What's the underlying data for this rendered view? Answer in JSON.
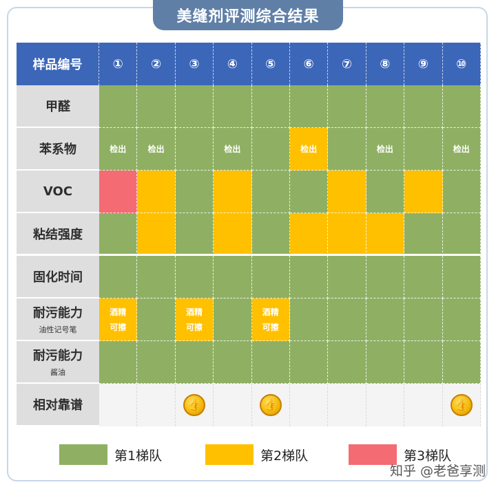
{
  "title": "美缝剂评测综合结果",
  "header": {
    "label": "样品编号",
    "samples": [
      "①",
      "②",
      "③",
      "④",
      "⑤",
      "⑥",
      "⑦",
      "⑧",
      "⑨",
      "⑩"
    ]
  },
  "rows": [
    {
      "label": "甲醛",
      "sub": "",
      "cells": [
        {
          "tier": 1,
          "text": ""
        },
        {
          "tier": 1,
          "text": ""
        },
        {
          "tier": 1,
          "text": ""
        },
        {
          "tier": 1,
          "text": ""
        },
        {
          "tier": 1,
          "text": ""
        },
        {
          "tier": 1,
          "text": ""
        },
        {
          "tier": 1,
          "text": ""
        },
        {
          "tier": 1,
          "text": ""
        },
        {
          "tier": 1,
          "text": ""
        },
        {
          "tier": 1,
          "text": ""
        }
      ]
    },
    {
      "label": "苯系物",
      "sub": "",
      "cells": [
        {
          "tier": 1,
          "text": "检出"
        },
        {
          "tier": 1,
          "text": "检出"
        },
        {
          "tier": 1,
          "text": ""
        },
        {
          "tier": 1,
          "text": "检出"
        },
        {
          "tier": 1,
          "text": ""
        },
        {
          "tier": 2,
          "text": "检出"
        },
        {
          "tier": 1,
          "text": ""
        },
        {
          "tier": 1,
          "text": "检出"
        },
        {
          "tier": 1,
          "text": ""
        },
        {
          "tier": 1,
          "text": "检出"
        }
      ]
    },
    {
      "label": "VOC",
      "sub": "",
      "cells": [
        {
          "tier": 3,
          "text": ""
        },
        {
          "tier": 2,
          "text": ""
        },
        {
          "tier": 1,
          "text": ""
        },
        {
          "tier": 2,
          "text": ""
        },
        {
          "tier": 1,
          "text": ""
        },
        {
          "tier": 1,
          "text": ""
        },
        {
          "tier": 2,
          "text": ""
        },
        {
          "tier": 1,
          "text": ""
        },
        {
          "tier": 2,
          "text": ""
        },
        {
          "tier": 1,
          "text": ""
        }
      ]
    },
    {
      "label": "粘结强度",
      "sub": "",
      "sep": true,
      "cells": [
        {
          "tier": 1,
          "text": ""
        },
        {
          "tier": 2,
          "text": ""
        },
        {
          "tier": 1,
          "text": ""
        },
        {
          "tier": 2,
          "text": ""
        },
        {
          "tier": 1,
          "text": ""
        },
        {
          "tier": 2,
          "text": ""
        },
        {
          "tier": 2,
          "text": ""
        },
        {
          "tier": 2,
          "text": ""
        },
        {
          "tier": 1,
          "text": ""
        },
        {
          "tier": 1,
          "text": ""
        }
      ]
    },
    {
      "label": "固化时间",
      "sub": "",
      "cells": [
        {
          "tier": 1,
          "text": ""
        },
        {
          "tier": 1,
          "text": ""
        },
        {
          "tier": 1,
          "text": ""
        },
        {
          "tier": 1,
          "text": ""
        },
        {
          "tier": 1,
          "text": ""
        },
        {
          "tier": 1,
          "text": ""
        },
        {
          "tier": 1,
          "text": ""
        },
        {
          "tier": 1,
          "text": ""
        },
        {
          "tier": 1,
          "text": ""
        },
        {
          "tier": 1,
          "text": ""
        }
      ]
    },
    {
      "label": "耐污能力",
      "sub": "油性记号笔",
      "cells": [
        {
          "tier": 2,
          "text": "酒精",
          "text2": "可擦"
        },
        {
          "tier": 1,
          "text": ""
        },
        {
          "tier": 2,
          "text": "酒精",
          "text2": "可擦"
        },
        {
          "tier": 1,
          "text": ""
        },
        {
          "tier": 2,
          "text": "酒精",
          "text2": "可擦"
        },
        {
          "tier": 1,
          "text": ""
        },
        {
          "tier": 1,
          "text": ""
        },
        {
          "tier": 1,
          "text": ""
        },
        {
          "tier": 1,
          "text": ""
        },
        {
          "tier": 1,
          "text": ""
        }
      ]
    },
    {
      "label": "耐污能力",
      "sub": "酱油",
      "cells": [
        {
          "tier": 1,
          "text": ""
        },
        {
          "tier": 1,
          "text": ""
        },
        {
          "tier": 1,
          "text": ""
        },
        {
          "tier": 1,
          "text": ""
        },
        {
          "tier": 1,
          "text": ""
        },
        {
          "tier": 1,
          "text": ""
        },
        {
          "tier": 1,
          "text": ""
        },
        {
          "tier": 1,
          "text": ""
        },
        {
          "tier": 1,
          "text": ""
        },
        {
          "tier": 1,
          "text": ""
        }
      ]
    },
    {
      "label": "相对靠谱",
      "sub": "",
      "cells": [
        {
          "tier": 0,
          "text": ""
        },
        {
          "tier": 0,
          "text": ""
        },
        {
          "tier": 0,
          "text": "",
          "icon": "thumbs-up-medal-icon"
        },
        {
          "tier": 0,
          "text": ""
        },
        {
          "tier": 0,
          "text": "",
          "icon": "thumbs-up-medal-icon"
        },
        {
          "tier": 0,
          "text": ""
        },
        {
          "tier": 0,
          "text": ""
        },
        {
          "tier": 0,
          "text": ""
        },
        {
          "tier": 0,
          "text": ""
        },
        {
          "tier": 0,
          "text": "",
          "icon": "thumbs-up-medal-icon"
        }
      ]
    }
  ],
  "legend": [
    {
      "label": "第1梯队",
      "color": "#8fb063"
    },
    {
      "label": "第2梯队",
      "color": "#ffc000"
    },
    {
      "label": "第3梯队",
      "color": "#f46b73"
    }
  ],
  "watermark": "知乎 @老爸享测"
}
